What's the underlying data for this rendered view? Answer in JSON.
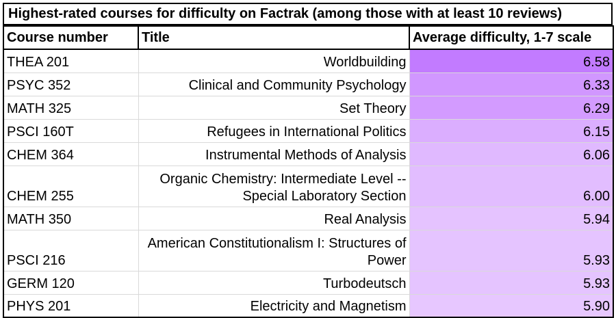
{
  "table": {
    "title": "Highest-rated courses for difficulty on Factrak (among those with at least 10 reviews)",
    "headers": {
      "course": "Course number",
      "title": "Title",
      "difficulty": "Average difficulty, 1-7 scale"
    },
    "rows": [
      {
        "course": "THEA 201",
        "title": "Worldbuilding",
        "difficulty": "6.58",
        "color": "#c27bff"
      },
      {
        "course": "PSYC 352",
        "title": "Clinical and Community Psychology",
        "difficulty": "6.33",
        "color": "#d197ff"
      },
      {
        "course": "MATH 325",
        "title": "Set Theory",
        "difficulty": "6.29",
        "color": "#d39bff"
      },
      {
        "course": "PSCI 160T",
        "title": "Refugees in International Politics",
        "difficulty": "6.15",
        "color": "#dbaeff"
      },
      {
        "course": "CHEM 364",
        "title": "Instrumental Methods of Analysis",
        "difficulty": "6.06",
        "color": "#e0b9ff"
      },
      {
        "course": "CHEM 255",
        "title": "Organic Chemistry: Intermediate Level -- Special Laboratory Section",
        "difficulty": "6.00",
        "color": "#e2bdff"
      },
      {
        "course": "MATH 350",
        "title": "Real Analysis",
        "difficulty": "5.94",
        "color": "#e5c3ff"
      },
      {
        "course": "PSCI 216",
        "title": "American Constitutionalism I: Structures of Power",
        "difficulty": "5.93",
        "color": "#e5c4ff"
      },
      {
        "course": "GERM 120",
        "title": "Turbodeutsch",
        "difficulty": "5.93",
        "color": "#e5c4ff"
      },
      {
        "course": "PHYS 201",
        "title": "Electricity and Magnetism",
        "difficulty": "5.90",
        "color": "#e7c7ff"
      }
    ]
  }
}
